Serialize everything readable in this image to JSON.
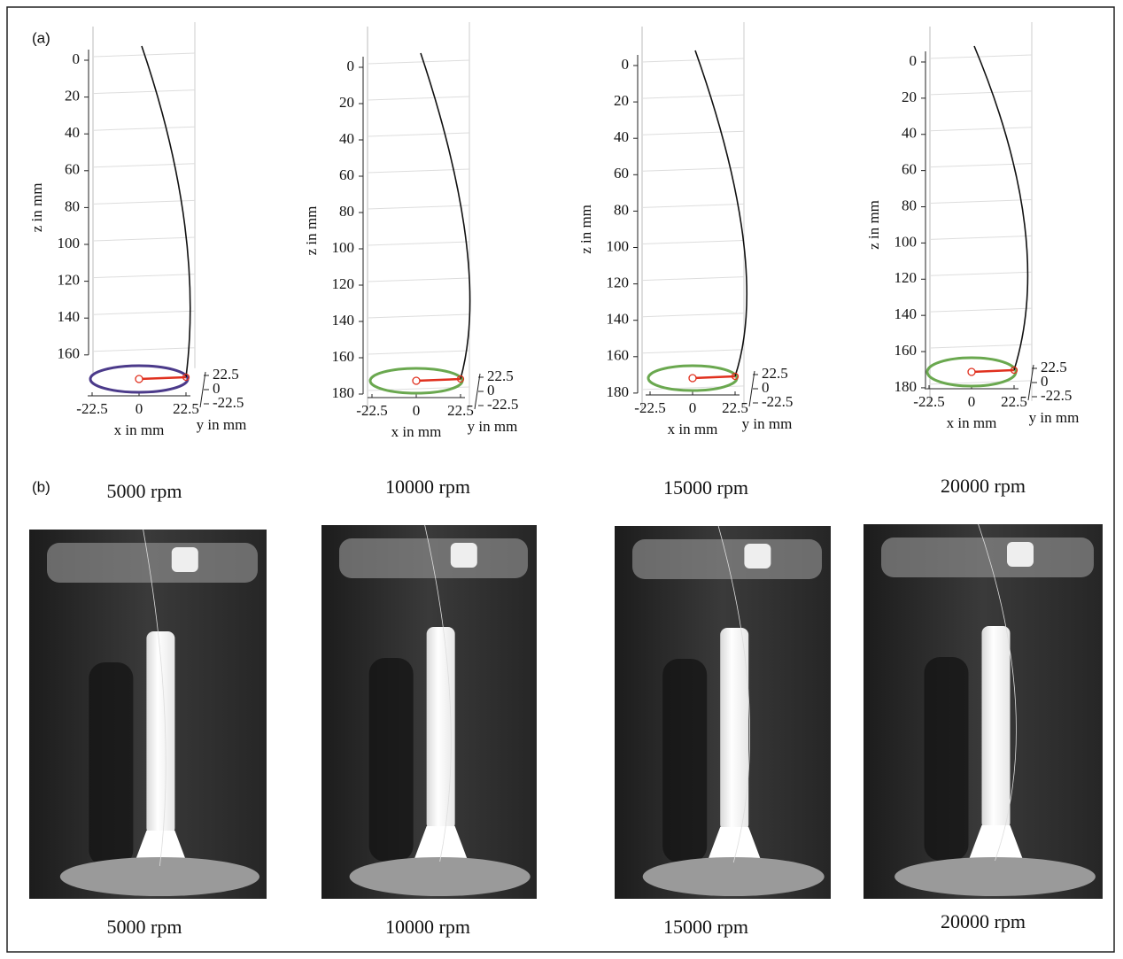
{
  "panel_labels": [
    "(a)",
    "(b)"
  ],
  "plots": [
    {
      "z_label": "z in mm",
      "x_label": "x in mm",
      "y_label": "y in mm",
      "zticks": [
        0,
        20,
        40,
        60,
        80,
        100,
        120,
        140,
        160
      ],
      "xticks": [
        -22.5,
        0,
        22.5
      ],
      "yticks": [
        22.5,
        0,
        -22.5
      ],
      "orbit_color": "#4b3a8a"
    },
    {
      "z_label": "z in mm",
      "x_label": "x in mm",
      "y_label": "y in mm",
      "zticks": [
        0,
        20,
        40,
        60,
        80,
        100,
        120,
        140,
        160,
        180
      ],
      "xticks": [
        -22.5,
        0,
        22.5
      ],
      "yticks": [
        22.5,
        0,
        -22.5
      ],
      "orbit_color": "#6aa84f"
    },
    {
      "z_label": "z in mm",
      "x_label": "x in mm",
      "y_label": "y in mm",
      "zticks": [
        0,
        20,
        40,
        60,
        80,
        100,
        120,
        140,
        160,
        180
      ],
      "xticks": [
        -22.5,
        0,
        22.5
      ],
      "yticks": [
        22.5,
        0,
        -22.5
      ],
      "orbit_color": "#6aa84f"
    },
    {
      "z_label": "z in mm",
      "x_label": "x in mm",
      "y_label": "y in mm",
      "zticks": [
        0,
        20,
        40,
        60,
        80,
        100,
        120,
        140,
        160,
        180
      ],
      "xticks": [
        -22.5,
        0,
        22.5
      ],
      "yticks": [
        22.5,
        0,
        -22.5
      ],
      "orbit_color": "#6aa84f"
    }
  ],
  "photos": [
    {
      "caption_top": "5000 rpm",
      "caption_bottom": "5000 rpm"
    },
    {
      "caption_top": "10000 rpm",
      "caption_bottom": "10000 rpm"
    },
    {
      "caption_top": "15000 rpm",
      "caption_bottom": "15000 rpm"
    },
    {
      "caption_top": "20000 rpm",
      "caption_bottom": "20000 rpm"
    }
  ]
}
